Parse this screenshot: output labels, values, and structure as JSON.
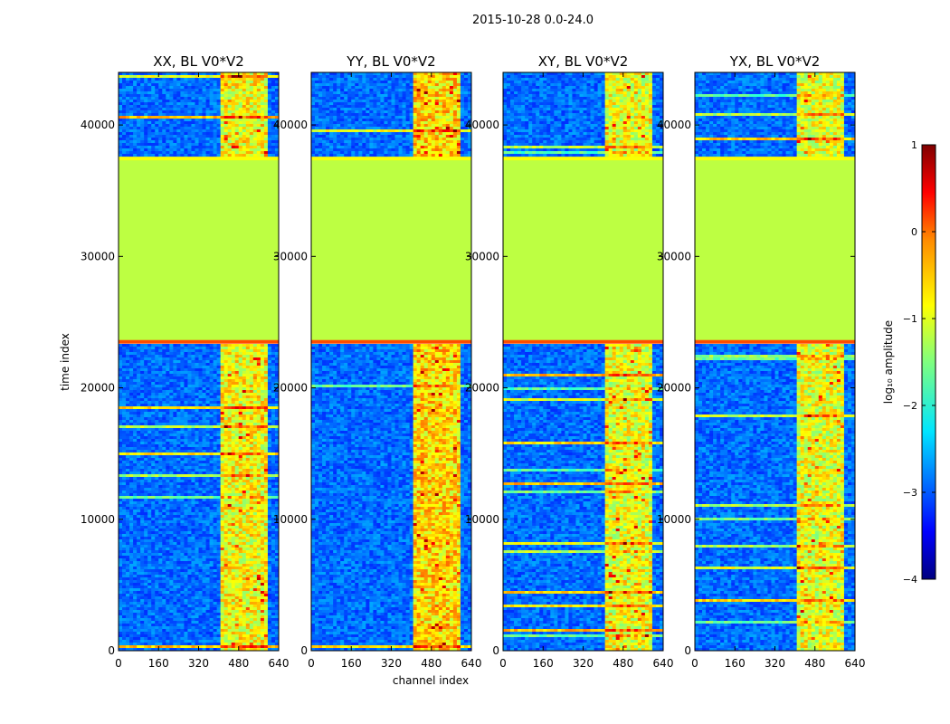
{
  "figure": {
    "suptitle": "2015-10-28 0.0-24.0"
  },
  "chart_data": {
    "type": "heatmap",
    "xlabel": "channel index",
    "ylabel": "time index",
    "xlim": [
      0,
      640
    ],
    "ylim": [
      0,
      44000
    ],
    "x_ticks": [
      0,
      160,
      320,
      480,
      640
    ],
    "y_ticks": [
      0,
      10000,
      20000,
      30000,
      40000
    ],
    "panels": [
      {
        "title": "XX, BL V0*V2",
        "pol": "XX",
        "hot_band": [
          410,
          600
        ],
        "hot_level": 0.62
      },
      {
        "title": "YY, BL V0*V2",
        "pol": "YY",
        "hot_band": [
          410,
          600
        ],
        "hot_level": 0.66
      },
      {
        "title": "XY, BL V0*V2",
        "pol": "XY",
        "hot_band": [
          410,
          600
        ],
        "hot_level": 0.6
      },
      {
        "title": "YX, BL V0*V2",
        "pol": "YX",
        "hot_band": [
          410,
          600
        ],
        "hot_level": 0.6
      }
    ],
    "flagged_block": {
      "time_range": [
        23400,
        37500
      ],
      "log_amplitude": -1.2
    },
    "edge_lines": [
      {
        "time": 23500,
        "log_amplitude": 0.0
      },
      {
        "time": 37450,
        "log_amplitude": -0.9
      }
    ],
    "colorbar": {
      "label": "log₁₀ amplitude",
      "vmin": -4,
      "vmax": 1,
      "ticks": [
        "1",
        "0",
        "−1",
        "−2",
        "−3",
        "−4"
      ],
      "colormap": "jet"
    }
  },
  "colors": {
    "flagged_green": "#9cff5b",
    "background": "#ffffff",
    "axes": "#000000"
  }
}
